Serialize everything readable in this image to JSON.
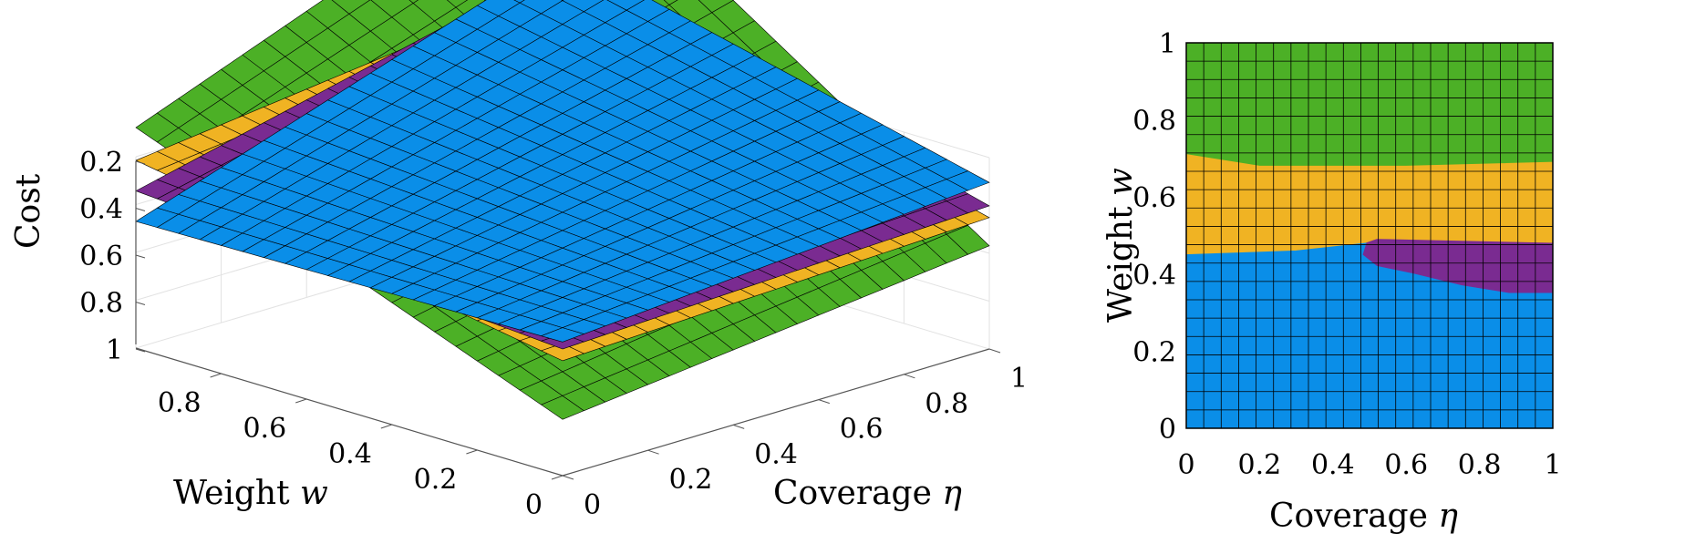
{
  "chart_data": [
    {
      "type": "surface",
      "zlabel": "Cost",
      "xlabel_text": "Weight ",
      "xlabel_var": "w",
      "ylabel_text": "Coverage ",
      "ylabel_var": "η",
      "w_ticks": [
        "0",
        "0.2",
        "0.4",
        "0.6",
        "0.8"
      ],
      "eta_ticks": [
        "0",
        "0.2",
        "0.4",
        "0.6",
        "0.8",
        "1"
      ],
      "cost_ticks": [
        "0.2",
        "0.4",
        "0.6",
        "0.8",
        "1"
      ],
      "cost_tick_values": [
        0.2,
        0.4,
        0.6,
        0.8,
        1.0
      ],
      "grid": true,
      "grid_n": 21,
      "surfaces": [
        {
          "color": "#4cb026",
          "corners_cost": {
            "w0_e0": 1.3,
            "w0_e1": 1.1,
            "w1_e0": 0.6,
            "w1_e1": -0.1
          }
        },
        {
          "color": "#f0b323",
          "corners_cost": {
            "w0_e0": 1.05,
            "w0_e1": 0.98,
            "w1_e0": 0.74,
            "w1_e1": 0.52
          }
        },
        {
          "color": "#7a2b91",
          "corners_cost": {
            "w0_e0": 1.0,
            "w0_e1": 0.93,
            "w1_e0": 0.87,
            "w1_e1": 0.44
          }
        },
        {
          "color": "#0a8ee8",
          "corners_cost": {
            "w0_e0": 0.97,
            "w0_e1": 0.83,
            "w1_e0": 1.0,
            "w1_e1": 0.39
          }
        }
      ]
    },
    {
      "type": "heatmap",
      "xlabel_text": "Coverage ",
      "xlabel_var": "η",
      "ylabel_text": "Weight ",
      "ylabel_var": "w",
      "x_ticks": [
        "0",
        "0.2",
        "0.4",
        "0.6",
        "0.8",
        "1"
      ],
      "y_ticks": [
        "0",
        "0.2",
        "0.4",
        "0.6",
        "0.8",
        "1"
      ],
      "xlim": [
        0,
        1
      ],
      "ylim": [
        0,
        1
      ],
      "grid_n": 21,
      "regions": [
        {
          "color": "#4cb026",
          "boundary": [
            [
              0,
              1
            ],
            [
              1,
              1
            ],
            [
              1,
              0.69
            ],
            [
              0.6,
              0.68
            ],
            [
              0.2,
              0.68
            ],
            [
              0,
              0.71
            ]
          ]
        },
        {
          "color": "#f0b323",
          "boundary": [
            [
              0,
              0.71
            ],
            [
              0.2,
              0.68
            ],
            [
              0.6,
              0.68
            ],
            [
              1,
              0.69
            ],
            [
              1,
              0.48
            ],
            [
              0.5,
              0.48
            ],
            [
              0.3,
              0.46
            ],
            [
              0,
              0.45
            ]
          ]
        },
        {
          "color": "#7a2b91",
          "boundary": [
            [
              0.49,
              0.48
            ],
            [
              0.52,
              0.49
            ],
            [
              1,
              0.48
            ],
            [
              1,
              0.35
            ],
            [
              0.88,
              0.35
            ],
            [
              0.75,
              0.37
            ],
            [
              0.62,
              0.4
            ],
            [
              0.52,
              0.42
            ],
            [
              0.48,
              0.45
            ]
          ]
        },
        {
          "color": "#0a8ee8",
          "boundary": [
            [
              0,
              0
            ],
            [
              1,
              0
            ],
            [
              1,
              0.35
            ],
            [
              0.88,
              0.35
            ],
            [
              0.75,
              0.37
            ],
            [
              0.62,
              0.4
            ],
            [
              0.52,
              0.42
            ],
            [
              0.48,
              0.45
            ],
            [
              0.49,
              0.48
            ],
            [
              0.3,
              0.46
            ],
            [
              0,
              0.45
            ]
          ]
        }
      ]
    }
  ]
}
